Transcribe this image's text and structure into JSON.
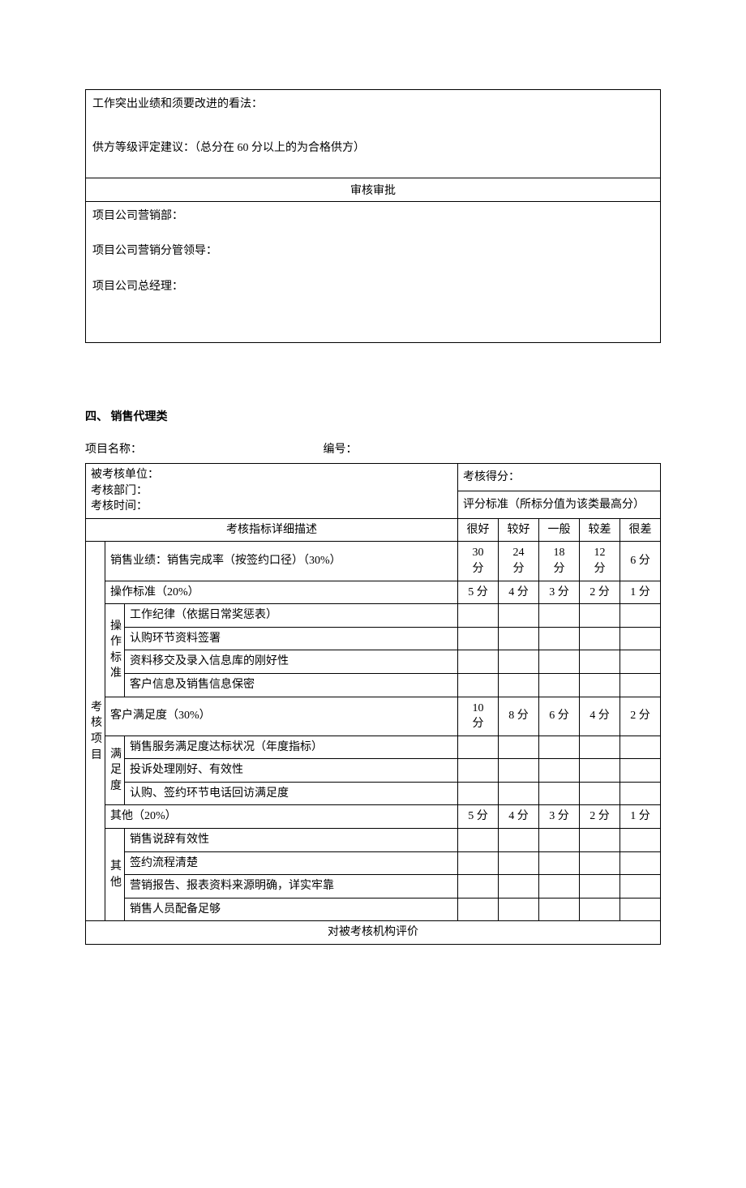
{
  "section1": {
    "line1": "工作突出业绩和须要改进的看法：",
    "line2": "供方等级评定建议：（总分在 60 分以上的为合格供方）",
    "approval_header": "审核审批",
    "dept1": "项目公司营销部：",
    "dept2": "项目公司营销分管领导：",
    "dept3": "项目公司总经理："
  },
  "section2": {
    "heading": "四、 销售代理类",
    "project_label": "项目名称：",
    "serial_label": "编号：",
    "unit_label": "被考核单位：",
    "dept_label": "考核部门：",
    "time_label": "考核时间：",
    "score_label": "考核得分：",
    "std_label": "评分标准（所标分值为该类最高分）",
    "desc_header": "考核指标详细描述",
    "rating_headers": [
      "很好",
      "较好",
      "一般",
      "较差",
      "很差"
    ],
    "side_label": "考核项目",
    "row_sales": {
      "label": "销售业绩：销售完成率（按签约口径）（30%）",
      "scores": [
        "30\n分",
        "24\n分",
        "18\n分",
        "12\n分",
        "6 分"
      ]
    },
    "row_op_std": {
      "label": "操作标准（20%）",
      "scores": [
        "5 分",
        "4 分",
        "3 分",
        "2 分",
        "1 分"
      ]
    },
    "cat_op": "操作标准",
    "op_items": [
      "工作纪律（依据日常奖惩表）",
      "认购环节资料签署",
      "资料移交及录入信息库的刚好性",
      "客户信息及销售信息保密"
    ],
    "row_cust": {
      "label": "客户满足度（30%）",
      "scores": [
        "10\n分",
        "8 分",
        "6 分",
        "4 分",
        "2 分"
      ]
    },
    "cat_sat": "满足度",
    "sat_items": [
      "销售服务满足度达标状况（年度指标）",
      "投诉处理刚好、有效性",
      "认购、签约环节电话回访满足度"
    ],
    "row_other": {
      "label": "其他（20%）",
      "scores": [
        "5 分",
        "4 分",
        "3 分",
        "2 分",
        "1 分"
      ]
    },
    "cat_other": "其他",
    "other_items": [
      "销售说辞有效性",
      "签约流程清楚",
      "营销报告、报表资料来源明确，详实牢靠",
      "销售人员配备足够"
    ],
    "eval_footer": "对被考核机构评价"
  },
  "style": {
    "border_color": "#000000",
    "background_color": "#ffffff",
    "text_color": "#000000",
    "font_family": "SimSun",
    "font_size_pt": 10.5
  }
}
